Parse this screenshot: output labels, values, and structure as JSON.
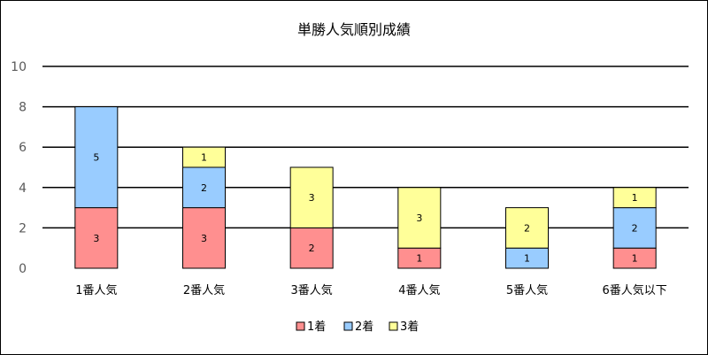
{
  "chart_data": {
    "type": "bar",
    "stacked": true,
    "title": "単勝人気順別成績",
    "xlabel": "",
    "ylabel": "",
    "ylim": [
      0,
      10
    ],
    "yticks": [
      0,
      2,
      4,
      6,
      8,
      10
    ],
    "grid": true,
    "legend": "bottom",
    "categories": [
      "1番人気",
      "2番人気",
      "3番人気",
      "4番人気",
      "5番人気",
      "6番人気以下"
    ],
    "series": [
      {
        "name": "1着",
        "color": "#FF8F8F",
        "values": [
          3,
          3,
          2,
          1,
          0,
          1
        ]
      },
      {
        "name": "2着",
        "color": "#99CCFF",
        "values": [
          5,
          2,
          0,
          0,
          1,
          2
        ]
      },
      {
        "name": "3着",
        "color": "#FFFF99",
        "values": [
          0,
          1,
          3,
          3,
          2,
          1
        ]
      }
    ]
  }
}
